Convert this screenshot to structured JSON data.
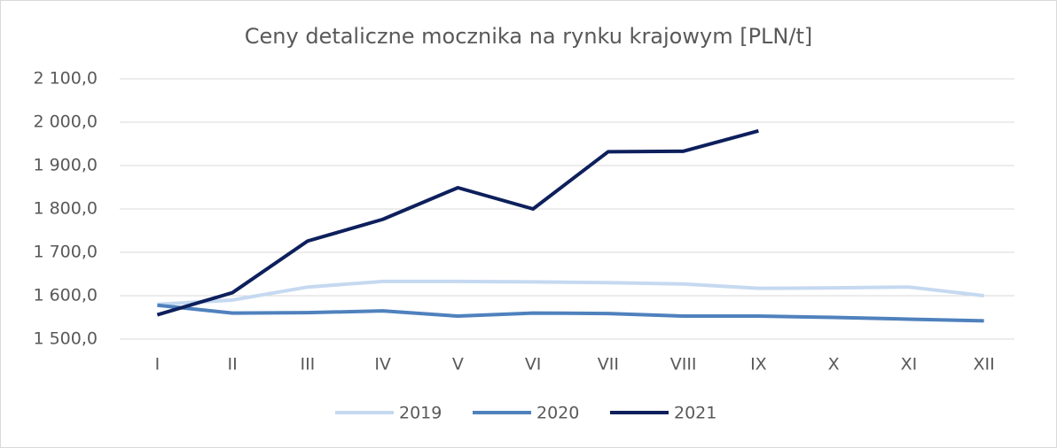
{
  "chart_data": {
    "type": "line",
    "title": "Ceny detaliczne mocznika na rynku krajowym [PLN/t]",
    "categories": [
      "I",
      "II",
      "III",
      "IV",
      "V",
      "VI",
      "VII",
      "VIII",
      "IX",
      "X",
      "XI",
      "XII"
    ],
    "series": [
      {
        "name": "2019",
        "color": "#c5d9f0",
        "values": [
          1580,
          1590,
          1620,
          1633,
          1633,
          1632,
          1630,
          1627,
          1617,
          1618,
          1620,
          1600
        ]
      },
      {
        "name": "2020",
        "color": "#4f81bd",
        "values": [
          1578,
          1560,
          1561,
          1565,
          1553,
          1560,
          1559,
          1553,
          1553,
          1550,
          1546,
          1542
        ]
      },
      {
        "name": "2021",
        "color": "#0d1f5c",
        "values": [
          1556,
          1607,
          1726,
          1776,
          1849,
          1800,
          1932,
          1933,
          1980,
          null,
          null,
          null
        ]
      }
    ],
    "ylim": [
      1500,
      2100
    ],
    "yticks": [
      {
        "value": 1500,
        "label": "1 500,0"
      },
      {
        "value": 1600,
        "label": "1 600,0"
      },
      {
        "value": 1700,
        "label": "1 700,0"
      },
      {
        "value": 1800,
        "label": "1 800,0"
      },
      {
        "value": 1900,
        "label": "1 900,0"
      },
      {
        "value": 2000,
        "label": "2 000,0"
      },
      {
        "value": 2100,
        "label": "2 100,0"
      }
    ],
    "grid": true,
    "legend": "bottom"
  }
}
